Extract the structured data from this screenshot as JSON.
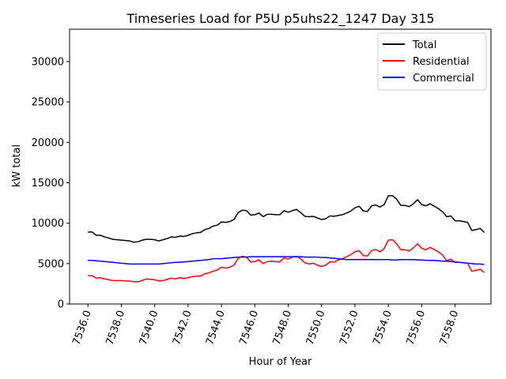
{
  "chart_data": {
    "type": "line",
    "title": "Timeseries Load for P5U p5uhs22_1247  Day 315",
    "xlabel": "Hour of Year",
    "ylabel": "kW total",
    "xlim": [
      7534.9,
      7560.15
    ],
    "ylim": [
      0,
      34000
    ],
    "x_ticks": [
      7536,
      7538,
      7540,
      7542,
      7544,
      7546,
      7548,
      7550,
      7552,
      7554,
      7556,
      7558
    ],
    "x_tick_labels": [
      "7536.0",
      "7538.0",
      "7540.0",
      "7542.0",
      "7544.0",
      "7546.0",
      "7548.0",
      "7550.0",
      "7552.0",
      "7554.0",
      "7556.0",
      "7558.0"
    ],
    "y_ticks": [
      0,
      5000,
      10000,
      15000,
      20000,
      25000,
      30000
    ],
    "y_tick_labels": [
      "0",
      "5000",
      "10000",
      "15000",
      "20000",
      "25000",
      "30000"
    ],
    "legend_position": "top-right",
    "x_start": 7536.0,
    "x_step": 0.25,
    "series": [
      {
        "name": "Total",
        "color": "#000000",
        "values": [
          8900,
          8900,
          8500,
          8500,
          8300,
          8150,
          8000,
          7950,
          7900,
          7850,
          7800,
          7650,
          7700,
          7900,
          8000,
          8000,
          7950,
          7800,
          7950,
          8100,
          8300,
          8250,
          8400,
          8350,
          8500,
          8700,
          8800,
          8850,
          9200,
          9350,
          9650,
          9750,
          10150,
          10100,
          10200,
          10450,
          11300,
          11600,
          11550,
          11000,
          11050,
          11250,
          10800,
          11100,
          11100,
          11050,
          11050,
          11550,
          11350,
          11550,
          11700,
          11300,
          10850,
          10800,
          10850,
          10650,
          10450,
          10550,
          10900,
          10850,
          10950,
          11050,
          11250,
          11500,
          11900,
          12100,
          11500,
          11450,
          12150,
          12250,
          12000,
          12300,
          13400,
          13400,
          12950,
          12200,
          12200,
          12050,
          12400,
          12900,
          12300,
          12150,
          12400,
          12100,
          11800,
          11400,
          10800,
          10900,
          10300,
          10300,
          10200,
          10100,
          9100,
          9200,
          9350,
          8850
        ]
      },
      {
        "name": "Residential",
        "color": "#ff0000",
        "values": [
          3500,
          3500,
          3200,
          3250,
          3100,
          3000,
          2900,
          2900,
          2900,
          2850,
          2850,
          2750,
          2750,
          2900,
          3100,
          3050,
          3000,
          2850,
          2900,
          3050,
          3200,
          3100,
          3250,
          3150,
          3250,
          3400,
          3450,
          3450,
          3750,
          3850,
          4050,
          4200,
          4550,
          4450,
          4550,
          4800,
          5650,
          5900,
          5800,
          5200,
          5250,
          5450,
          5000,
          5250,
          5300,
          5250,
          5200,
          5700,
          5550,
          5800,
          5900,
          5600,
          5100,
          4950,
          5050,
          4800,
          4650,
          4800,
          5200,
          5200,
          5450,
          5600,
          5850,
          6100,
          6450,
          6600,
          6000,
          5950,
          6600,
          6750,
          6450,
          6850,
          7900,
          7950,
          7450,
          6700,
          6700,
          6550,
          6950,
          7450,
          6900,
          6700,
          7000,
          6750,
          6450,
          6050,
          5350,
          5550,
          5150,
          5150,
          5100,
          5050,
          4050,
          4150,
          4300,
          3900
        ]
      },
      {
        "name": "Commercial",
        "color": "#0000ff",
        "values": [
          5400,
          5400,
          5350,
          5300,
          5250,
          5200,
          5150,
          5100,
          5050,
          5000,
          4950,
          4950,
          4950,
          4950,
          4950,
          4950,
          4950,
          4950,
          5000,
          5050,
          5100,
          5150,
          5150,
          5200,
          5250,
          5300,
          5350,
          5400,
          5450,
          5500,
          5600,
          5600,
          5600,
          5650,
          5700,
          5750,
          5800,
          5800,
          5800,
          5850,
          5850,
          5850,
          5850,
          5850,
          5850,
          5850,
          5850,
          5850,
          5850,
          5850,
          5850,
          5850,
          5800,
          5800,
          5800,
          5800,
          5750,
          5750,
          5700,
          5650,
          5600,
          5550,
          5500,
          5500,
          5500,
          5500,
          5500,
          5500,
          5500,
          5500,
          5500,
          5500,
          5500,
          5450,
          5450,
          5500,
          5500,
          5500,
          5500,
          5450,
          5450,
          5400,
          5400,
          5400,
          5350,
          5300,
          5300,
          5250,
          5200,
          5150,
          5100,
          5050,
          5000,
          4950,
          4950,
          4900
        ]
      }
    ]
  }
}
